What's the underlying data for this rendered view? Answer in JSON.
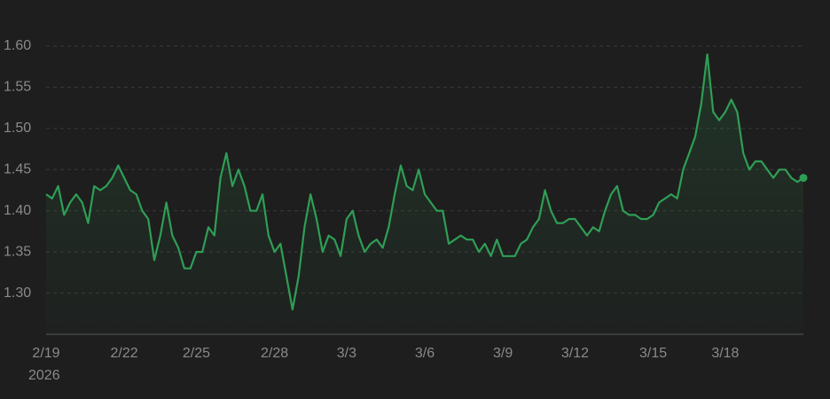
{
  "chart_data": {
    "type": "line",
    "x_axis_year": "2026",
    "categories": [
      "2/19",
      null,
      null,
      null,
      null,
      null,
      null,
      null,
      null,
      null,
      null,
      null,
      null,
      "2/22",
      null,
      null,
      null,
      null,
      null,
      null,
      null,
      null,
      null,
      null,
      null,
      "2/25",
      null,
      null,
      null,
      null,
      null,
      null,
      null,
      null,
      null,
      null,
      null,
      null,
      "2/28",
      null,
      null,
      null,
      null,
      null,
      null,
      null,
      null,
      null,
      null,
      null,
      "3/3",
      null,
      null,
      null,
      null,
      null,
      null,
      null,
      null,
      null,
      null,
      null,
      null,
      "3/6",
      null,
      null,
      null,
      null,
      null,
      null,
      null,
      null,
      null,
      null,
      null,
      null,
      "3/9",
      null,
      null,
      null,
      null,
      null,
      null,
      null,
      null,
      null,
      null,
      null,
      "3/12",
      null,
      null,
      null,
      null,
      null,
      null,
      null,
      null,
      null,
      null,
      null,
      null,
      "3/15",
      null,
      null,
      null,
      null,
      null,
      null,
      null,
      null,
      null,
      null,
      null,
      "3/18",
      null,
      null,
      null,
      null,
      null,
      null,
      null,
      null,
      null,
      null,
      null,
      null,
      null
    ],
    "values": [
      1.42,
      1.415,
      1.43,
      1.395,
      1.41,
      1.42,
      1.41,
      1.385,
      1.43,
      1.425,
      1.43,
      1.44,
      1.455,
      1.44,
      1.425,
      1.42,
      1.4,
      1.39,
      1.34,
      1.37,
      1.41,
      1.37,
      1.355,
      1.33,
      1.33,
      1.35,
      1.35,
      1.38,
      1.37,
      1.44,
      1.47,
      1.43,
      1.45,
      1.43,
      1.4,
      1.4,
      1.42,
      1.37,
      1.35,
      1.36,
      1.32,
      1.28,
      1.32,
      1.38,
      1.42,
      1.39,
      1.35,
      1.37,
      1.365,
      1.345,
      1.39,
      1.4,
      1.37,
      1.35,
      1.36,
      1.365,
      1.355,
      1.38,
      1.42,
      1.455,
      1.43,
      1.425,
      1.45,
      1.42,
      1.41,
      1.4,
      1.4,
      1.36,
      1.365,
      1.37,
      1.365,
      1.365,
      1.35,
      1.36,
      1.345,
      1.365,
      1.345,
      1.345,
      1.345,
      1.36,
      1.365,
      1.38,
      1.39,
      1.425,
      1.4,
      1.385,
      1.385,
      1.39,
      1.39,
      1.38,
      1.37,
      1.38,
      1.375,
      1.4,
      1.42,
      1.43,
      1.4,
      1.395,
      1.395,
      1.39,
      1.39,
      1.395,
      1.41,
      1.415,
      1.42,
      1.415,
      1.45,
      1.47,
      1.49,
      1.53,
      1.59,
      1.52,
      1.51,
      1.52,
      1.535,
      1.52,
      1.47,
      1.45,
      1.46,
      1.46,
      1.45,
      1.44,
      1.45,
      1.45,
      1.44,
      1.435,
      1.44
    ],
    "color": "#2f9e55",
    "ylim": [
      1.25,
      1.62
    ],
    "yticks": [
      {
        "value": 1.3,
        "label": "1.30"
      },
      {
        "value": 1.35,
        "label": "1.35"
      },
      {
        "value": 1.4,
        "label": "1.40"
      },
      {
        "value": 1.45,
        "label": "1.45"
      },
      {
        "value": 1.5,
        "label": "1.50"
      },
      {
        "value": 1.55,
        "label": "1.55"
      },
      {
        "value": 1.6,
        "label": "1.60"
      }
    ],
    "grid": true
  }
}
